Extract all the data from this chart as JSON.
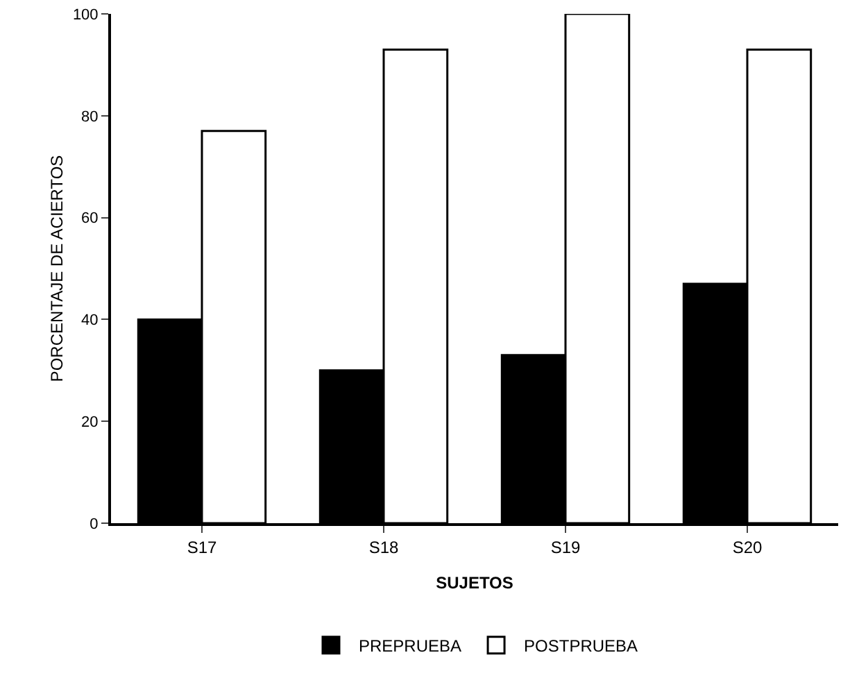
{
  "chart_data": {
    "type": "bar",
    "xlabel": "SUJETOS",
    "ylabel": "PORCENTAJE DE ACIERTOS",
    "categories": [
      "S17",
      "S18",
      "S19",
      "S20"
    ],
    "series": [
      {
        "name": "PREPRUEBA",
        "color": "#000000",
        "values": [
          40,
          30,
          33,
          47
        ]
      },
      {
        "name": "POSTPRUEBA",
        "color": "#ffffff",
        "values": [
          77,
          93,
          100,
          93
        ]
      }
    ],
    "ylim": [
      0,
      100
    ],
    "yticks": [
      0,
      20,
      40,
      60,
      80,
      100
    ],
    "grid": false,
    "legend": "bottom"
  }
}
